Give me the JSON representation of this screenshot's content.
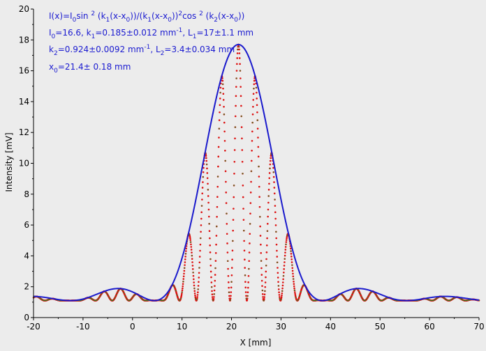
{
  "chart_data": {
    "type": "scatter",
    "title": "",
    "xlabel": "X [mm]",
    "ylabel": "Intensity [mV]",
    "xlim": [
      -20,
      70
    ],
    "ylim": [
      0,
      20
    ],
    "x_ticks": [
      -20,
      -10,
      0,
      10,
      20,
      30,
      40,
      50,
      60,
      70
    ],
    "y_ticks": [
      0,
      2,
      4,
      6,
      8,
      10,
      12,
      14,
      16,
      18,
      20
    ],
    "grid": false,
    "legend": "none",
    "fit_function": "I(x)=I0 sin^2(k1(x-x0))/(k1(x-x0))^2 cos^2(k2(x-x0))",
    "fit_params": {
      "I0": 16.6,
      "k1": 0.185,
      "k2": 0.924,
      "x0": 21.4,
      "baseline": 1.1
    },
    "series": [
      {
        "name": "",
        "kind": "measured points",
        "color": "#dd1111",
        "x_start": -20,
        "x_end": 70,
        "x_step": 0.05,
        "model": "baseline + I0 * sinc^2(k1(x-x0)) * cos^2(k2(x-x0))"
      },
      {
        "name": "",
        "kind": "fit points",
        "color": "#2a8a2a",
        "x_start": -20,
        "x_end": 70,
        "x_step": 0.25,
        "model": "baseline + I0 * sinc^2(k1(x-x0)) * cos^2(k2(x-x0))"
      },
      {
        "name": "",
        "kind": "envelope",
        "color": "#1a1acc",
        "x_start": -20,
        "x_end": 70,
        "x_step": 0.1,
        "model": "baseline + I0 * sinc^2(k1(x-x0))"
      }
    ],
    "annotations": [
      {
        "segments": [
          {
            "t": "I(x)=I",
            "s": ""
          },
          {
            "t": "0",
            "s": "sub"
          },
          {
            "t": "sin ",
            "s": ""
          },
          {
            "t": "2",
            "s": "sup"
          },
          {
            "t": " (k",
            "s": ""
          },
          {
            "t": "1",
            "s": "sub"
          },
          {
            "t": "(x-x",
            "s": ""
          },
          {
            "t": "0",
            "s": "sub"
          },
          {
            "t": "))/(k",
            "s": ""
          },
          {
            "t": "1",
            "s": "sub"
          },
          {
            "t": "(x-x",
            "s": ""
          },
          {
            "t": "0",
            "s": "sub"
          },
          {
            "t": "))",
            "s": ""
          },
          {
            "t": "2",
            "s": "sup"
          },
          {
            "t": "cos ",
            "s": ""
          },
          {
            "t": "2",
            "s": "sup"
          },
          {
            "t": " (k",
            "s": ""
          },
          {
            "t": "2",
            "s": "sub"
          },
          {
            "t": "(x-x",
            "s": ""
          },
          {
            "t": "0",
            "s": "sub"
          },
          {
            "t": "))",
            "s": ""
          }
        ]
      },
      {
        "segments": [
          {
            "t": "I",
            "s": ""
          },
          {
            "t": "0",
            "s": "sub"
          },
          {
            "t": "=16.6,  k",
            "s": ""
          },
          {
            "t": "1",
            "s": "sub"
          },
          {
            "t": "=0.185±0.012 mm",
            "s": ""
          },
          {
            "t": "-1",
            "s": "sup"
          },
          {
            "t": ",   L",
            "s": ""
          },
          {
            "t": "1",
            "s": "sub"
          },
          {
            "t": "=17±1.1 mm",
            "s": ""
          }
        ]
      },
      {
        "segments": [
          {
            "t": "k",
            "s": ""
          },
          {
            "t": "2",
            "s": "sub"
          },
          {
            "t": "=0.924±0.0092 mm",
            "s": ""
          },
          {
            "t": "-1",
            "s": "sup"
          },
          {
            "t": ",   L",
            "s": ""
          },
          {
            "t": "2",
            "s": "sub"
          },
          {
            "t": "=3.4±0.034 mm",
            "s": ""
          }
        ]
      },
      {
        "segments": [
          {
            "t": "x",
            "s": ""
          },
          {
            "t": "0",
            "s": "sub"
          },
          {
            "t": "=21.4±  0.18 mm",
            "s": ""
          }
        ]
      }
    ]
  }
}
